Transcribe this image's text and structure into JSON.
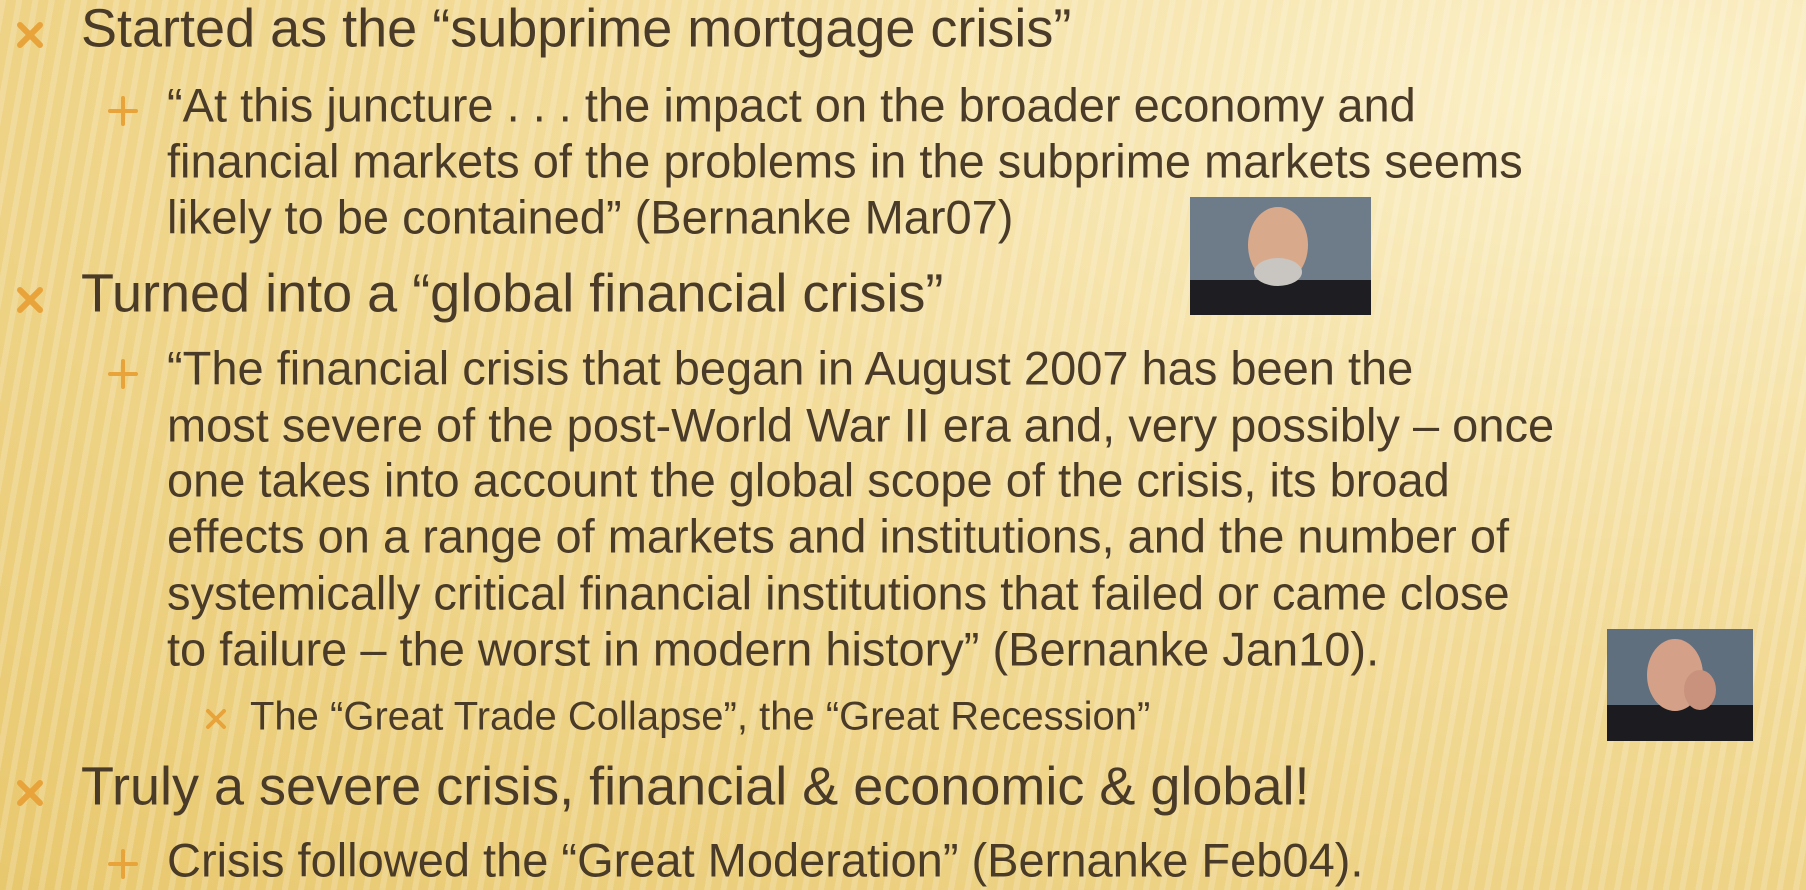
{
  "bullets": [
    {
      "text": "Started as the “subprime mortgage crisis”",
      "sub": [
        {
          "lines": [
            "“At this juncture . . . the impact on the broader economy and",
            "financial markets of the problems in the subprime markets seems",
            "likely to be contained” (Bernanke Mar07)"
          ]
        }
      ]
    },
    {
      "text": "Turned into a “global financial crisis”",
      "sub": [
        {
          "lines": [
            "“The financial crisis that began in August 2007 has been the",
            "most severe of the post-World War II era and, very possibly – once",
            "one takes into account the global scope of the crisis, its broad",
            "effects on a range of markets and institutions, and the number of",
            "systemically critical financial institutions that failed or came close",
            "to failure – the worst in modern history” (Bernanke Jan10)."
          ],
          "sub": [
            {
              "text": "The “Great Trade Collapse”, the “Great Recession”"
            }
          ]
        }
      ]
    },
    {
      "text": "Truly a severe crisis, financial & economic & global!",
      "sub": [
        {
          "lines": [
            "Crisis followed the “Great Moderation” (Bernanke Feb04)."
          ]
        }
      ]
    }
  ]
}
